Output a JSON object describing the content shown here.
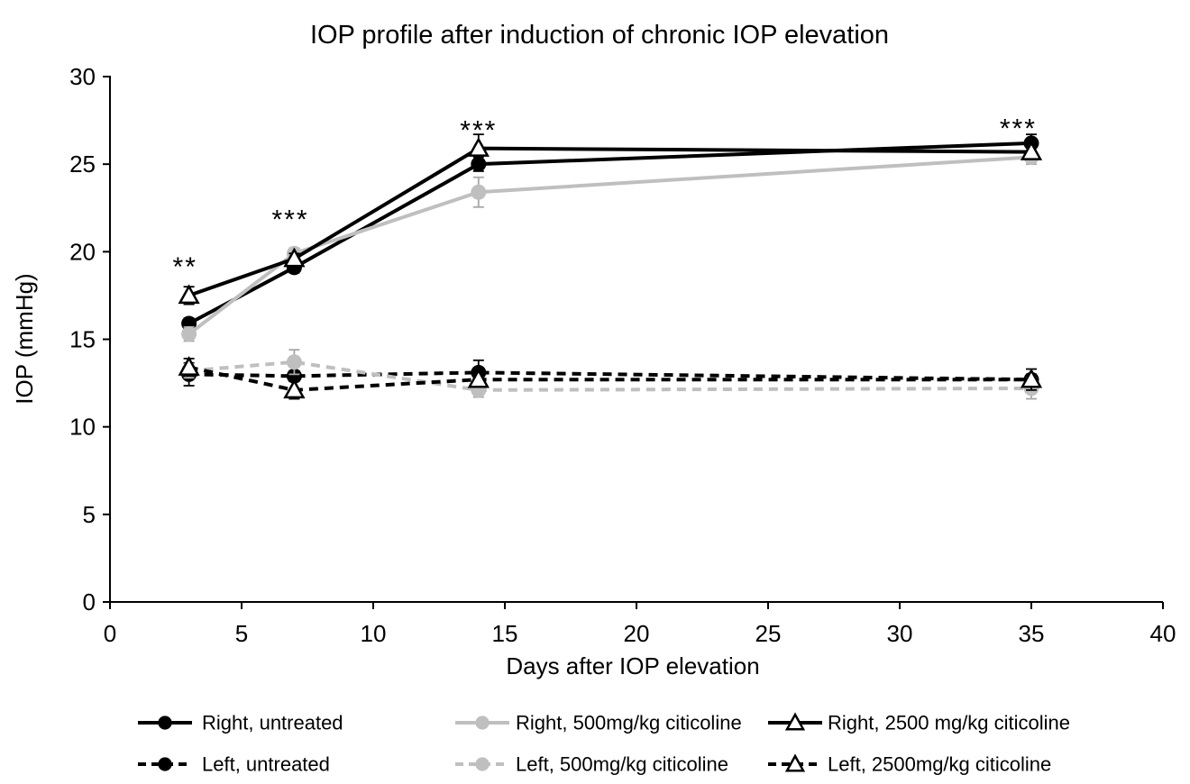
{
  "chart_data": {
    "type": "line",
    "title": "IOP profile after induction of chronic IOP elevation",
    "xlabel": "Days after IOP elevation",
    "ylabel": "IOP (mmHg)",
    "xlim": [
      0,
      40
    ],
    "ylim": [
      0,
      30
    ],
    "x_ticks": [
      0,
      5,
      10,
      15,
      20,
      25,
      30,
      35,
      40
    ],
    "y_ticks": [
      0,
      5,
      10,
      15,
      20,
      25,
      30
    ],
    "grid": false,
    "legend_position": "bottom",
    "x": [
      3,
      7,
      14,
      35
    ],
    "series": [
      {
        "name": "Right, untreated",
        "color": "#000000",
        "dash": "solid",
        "marker": "circle-filled",
        "marker_color": "#000000",
        "error_color": "#000000",
        "values": [
          15.9,
          19.1,
          25.0,
          26.2
        ],
        "errors": [
          0.3,
          0.3,
          0.4,
          0.5
        ]
      },
      {
        "name": "Right, 500mg/kg citicoline",
        "color": "#BFBFBF",
        "dash": "solid",
        "marker": "circle-filled",
        "marker_color": "#BFBFBF",
        "error_color": "#A6A6A6",
        "values": [
          15.3,
          19.9,
          23.4,
          25.4
        ],
        "errors": [
          0.4,
          0.3,
          0.85,
          0.4
        ]
      },
      {
        "name": "Right, 2500 mg/kg citicoline",
        "color": "#000000",
        "dash": "solid",
        "marker": "triangle-open",
        "marker_color": "#FFFFFF",
        "error_color": "#000000",
        "values": [
          17.5,
          19.6,
          25.9,
          25.7
        ],
        "errors": [
          0.5,
          0.3,
          0.8,
          0.4
        ]
      },
      {
        "name": "Left, untreated",
        "color": "#000000",
        "dash": "dashed",
        "marker": "circle-filled",
        "marker_color": "#000000",
        "error_color": "#000000",
        "values": [
          13.0,
          12.9,
          13.1,
          12.7
        ],
        "errors": [
          0.65,
          0.3,
          0.7,
          0.3
        ]
      },
      {
        "name": "Left, 500mg/kg citicoline",
        "color": "#BFBFBF",
        "dash": "dashed",
        "marker": "circle-filled",
        "marker_color": "#BFBFBF",
        "error_color": "#A6A6A6",
        "values": [
          13.2,
          13.7,
          12.1,
          12.2
        ],
        "errors": [
          0.4,
          0.7,
          0.4,
          0.6
        ]
      },
      {
        "name": "Left, 2500mg/kg citicoline",
        "color": "#000000",
        "dash": "dashed",
        "marker": "triangle-open",
        "marker_color": "#FFFFFF",
        "error_color": "#000000",
        "values": [
          13.4,
          12.1,
          12.7,
          12.7
        ],
        "errors": [
          0.5,
          0.5,
          0.4,
          0.6
        ]
      }
    ],
    "annotations": [
      {
        "text": "**",
        "x": 2.85,
        "y": 19.4
      },
      {
        "text": "***",
        "x": 6.85,
        "y": 22.1
      },
      {
        "text": "***",
        "x": 14.0,
        "y": 27.2
      },
      {
        "text": "***",
        "x": 34.5,
        "y": 27.3
      }
    ]
  },
  "colors": {
    "black_series": "#000000",
    "gray_series": "#BFBFBF",
    "background": "#FFFFFF"
  }
}
